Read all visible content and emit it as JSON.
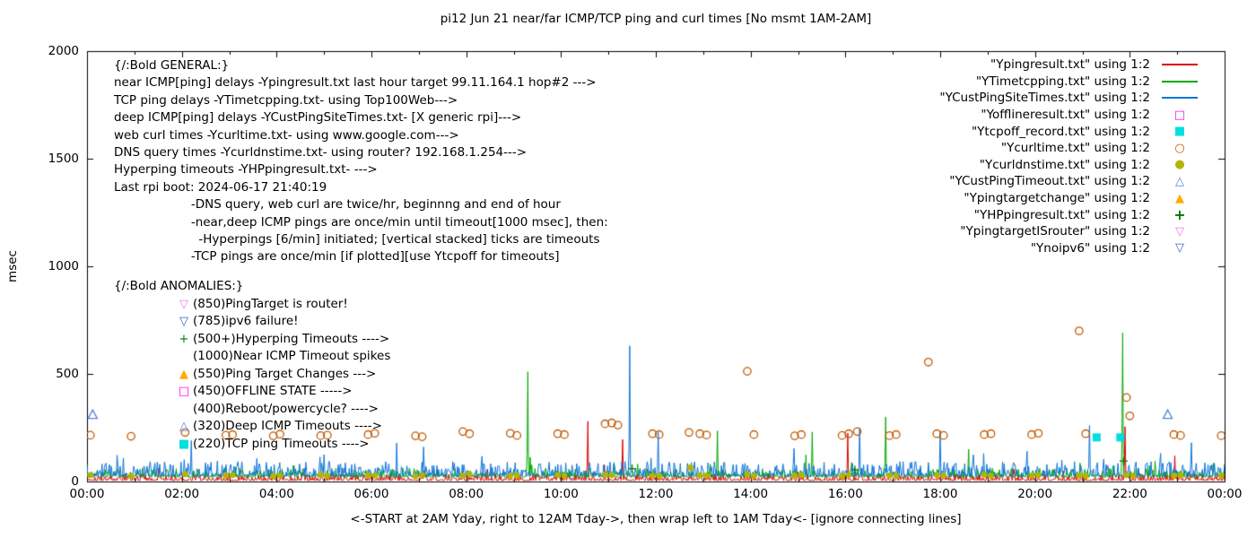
{
  "title": "pi12 Jun 21  near/far ICMP/TCP ping and curl times [No msmt 1AM-2AM]",
  "y_axis": {
    "label": "msec",
    "ticks": [
      0,
      500,
      1000,
      1500,
      2000
    ],
    "tick_labels": [
      "0",
      "500",
      "1000",
      "1500",
      "2000"
    ]
  },
  "x_axis": {
    "label": "<-START at 2AM Yday, right to 12AM Tday->, then wrap left to 1AM Tday<- [ignore connecting lines]",
    "ticks": [
      0,
      2,
      4,
      6,
      8,
      10,
      12,
      14,
      16,
      18,
      20,
      22,
      24
    ],
    "tick_labels": [
      "00:00",
      "02:00",
      "04:00",
      "06:00",
      "08:00",
      "10:00",
      "12:00",
      "14:00",
      "16:00",
      "18:00",
      "20:00",
      "22:00",
      "00:00"
    ]
  },
  "general_notes": {
    "lines": [
      "{/:Bold GENERAL:}",
      "near ICMP[ping] delays -Ypingresult.txt last hour target 99.11.164.1 hop#2 --->",
      "TCP ping delays -YTimetcpping.txt- using Top100Web--->",
      "deep ICMP[ping] delays -YCustPingSiteTimes.txt- [X generic rpi]--->",
      "web curl times -Ycurltime.txt- using www.google.com--->",
      "DNS query times -Ycurldnstime.txt- using router? 192.168.1.254--->",
      "Hyperping timeouts -YHPpingresult.txt- --->",
      "Last rpi boot: 2024-06-17 21:40:19",
      "                    -DNS query, web curl are twice/hr, beginnng and end of hour",
      "                    -near,deep ICMP pings are once/min until timeout[1000 msec], then:",
      "                      -Hyperpings [6/min] initiated; [vertical stacked] ticks are timeouts",
      "                    -TCP pings are once/min [if plotted][use Ytcpoff for timeouts]"
    ]
  },
  "anomaly_notes": {
    "heading": "{/:Bold ANOMALIES:}",
    "lines": [
      {
        "marker": "tri-down-open",
        "color": "#e678e6",
        "text": "(850)PingTarget is router!"
      },
      {
        "marker": "tri-down-open",
        "color": "#3a5fc8",
        "text": "(785)ipv6 failure!"
      },
      {
        "marker": "plus",
        "color": "#007800",
        "text": "(500+)Hyperping Timeouts ---->"
      },
      {
        "marker": null,
        "color": null,
        "text": "(1000)Near ICMP Timeout spikes"
      },
      {
        "marker": "triangle-filled",
        "color": "#ffaa00",
        "text": "(550)Ping Target Changes --->"
      },
      {
        "marker": "square-open",
        "color": "#ff00ff",
        "text": "(450)OFFLINE STATE ----->"
      },
      {
        "marker": null,
        "color": null,
        "text": "(400)Reboot/powercycle? ---->"
      },
      {
        "marker": "triangle-open",
        "color": "#4f86d8",
        "text": "(320)Deep ICMP Timeouts ---->"
      },
      {
        "marker": "square-filled",
        "color": "#00dede",
        "text": "(220)TCP ping Timeouts ---->"
      }
    ]
  },
  "legend": {
    "entries": [
      {
        "label": "\"Ypingresult.txt\" using 1:2",
        "sample": "line",
        "marker": null,
        "color": "#dc0000"
      },
      {
        "label": "\"YTimetcpping.txt\" using 1:2",
        "sample": "line",
        "marker": null,
        "color": "#00a800"
      },
      {
        "label": "\"YCustPingSiteTimes.txt\" using 1:2",
        "sample": "line",
        "marker": null,
        "color": "#0f74d8"
      },
      {
        "label": "\"Yofflineresult.txt\" using 1:2",
        "sample": "marker",
        "marker": "square-open",
        "color": "#ff00ff"
      },
      {
        "label": "\"Ytcpoff_record.txt\" using 1:2",
        "sample": "marker",
        "marker": "square-filled",
        "color": "#00dede"
      },
      {
        "label": "\"Ycurltime.txt\" using 1:2",
        "sample": "marker",
        "marker": "circle-open",
        "color": "#c05a00"
      },
      {
        "label": "\"Ycurldnstime.txt\" using 1:2",
        "sample": "marker",
        "marker": "circle-filled",
        "color": "#b4b400"
      },
      {
        "label": "\"YCustPingTimeout.txt\" using 1:2",
        "sample": "marker",
        "marker": "triangle-open",
        "color": "#4f86d8"
      },
      {
        "label": "\"Ypingtargetchange\" using 1:2",
        "sample": "marker",
        "marker": "triangle-filled",
        "color": "#ffaa00"
      },
      {
        "label": "\"YHPpingresult.txt\" using 1:2",
        "sample": "marker",
        "marker": "plus",
        "color": "#007800"
      },
      {
        "label": "\"YpingtargetISrouter\" using 1:2",
        "sample": "marker",
        "marker": "tri-down-open",
        "color": "#e678e6"
      },
      {
        "label": "\"Ynoipv6\" using 1:2",
        "sample": "marker",
        "marker": "tri-down-open",
        "color": "#3a5fc8"
      }
    ]
  },
  "chart_data": {
    "type": "line",
    "x_unit": "hours",
    "x_range": [
      0,
      24
    ],
    "y_range": [
      0,
      2000
    ],
    "samples_per_hour": 60,
    "no_measurement_window": "1AM-2AM",
    "series": [
      {
        "name": "Ypingresult.txt",
        "style": "line",
        "color": "#dc0000",
        "baseline": {
          "base": 5,
          "jitter": 32,
          "seed": 101
        },
        "spikes": [
          [
            10.56,
            280
          ],
          [
            11.3,
            195
          ],
          [
            16.05,
            225
          ],
          [
            21.9,
            255
          ],
          [
            22.95,
            120
          ]
        ]
      },
      {
        "name": "YTimetcpping.txt",
        "style": "line",
        "color": "#00a800",
        "baseline": {
          "base": 20,
          "jitter": 42,
          "seed": 202
        },
        "spikes": [
          [
            9.3,
            510
          ],
          [
            13.3,
            235
          ],
          [
            15.3,
            230
          ],
          [
            16.85,
            300
          ],
          [
            18.6,
            150
          ],
          [
            21.85,
            690
          ]
        ]
      },
      {
        "name": "YCustPingSiteTimes.txt",
        "style": "line",
        "color": "#0f74d8",
        "baseline": {
          "base": 25,
          "jitter": 68,
          "seed": 303
        },
        "spikes": [
          [
            2.2,
            190
          ],
          [
            7.1,
            160
          ],
          [
            11.45,
            630
          ],
          [
            12.05,
            230
          ],
          [
            16.3,
            250
          ],
          [
            18.0,
            235
          ],
          [
            21.15,
            260
          ],
          [
            23.3,
            180
          ]
        ]
      },
      {
        "name": "Yofflineresult.txt",
        "style": "marker",
        "marker": "square-open",
        "color": "#ff00ff",
        "points": []
      },
      {
        "name": "Ytcpoff_record.txt",
        "style": "marker",
        "marker": "square-filled",
        "color": "#00dede",
        "points": [
          [
            21.3,
            205
          ],
          [
            21.8,
            205
          ]
        ]
      },
      {
        "name": "Ycurltime.txt",
        "style": "marker",
        "marker": "circle-open",
        "color": "#c05a00",
        "points": [
          [
            0.07,
            215
          ],
          [
            0.93,
            210
          ],
          [
            2.07,
            228
          ],
          [
            2.93,
            215
          ],
          [
            3.07,
            218
          ],
          [
            3.93,
            212
          ],
          [
            4.07,
            220
          ],
          [
            4.93,
            213
          ],
          [
            5.07,
            215
          ],
          [
            5.93,
            218
          ],
          [
            6.07,
            224
          ],
          [
            6.93,
            212
          ],
          [
            7.07,
            208
          ],
          [
            7.93,
            232
          ],
          [
            8.07,
            222
          ],
          [
            8.93,
            224
          ],
          [
            9.07,
            214
          ],
          [
            9.93,
            222
          ],
          [
            10.07,
            218
          ],
          [
            10.93,
            268
          ],
          [
            11.07,
            272
          ],
          [
            11.2,
            262
          ],
          [
            11.93,
            222
          ],
          [
            12.07,
            218
          ],
          [
            12.7,
            228
          ],
          [
            12.93,
            222
          ],
          [
            13.07,
            216
          ],
          [
            13.93,
            512
          ],
          [
            14.07,
            218
          ],
          [
            14.93,
            212
          ],
          [
            15.07,
            218
          ],
          [
            15.93,
            214
          ],
          [
            16.07,
            222
          ],
          [
            16.25,
            232
          ],
          [
            16.93,
            213
          ],
          [
            17.07,
            218
          ],
          [
            17.75,
            555
          ],
          [
            17.93,
            222
          ],
          [
            18.07,
            214
          ],
          [
            18.93,
            218
          ],
          [
            19.07,
            222
          ],
          [
            19.93,
            218
          ],
          [
            20.07,
            224
          ],
          [
            20.93,
            700
          ],
          [
            21.07,
            222
          ],
          [
            21.93,
            390
          ],
          [
            22.0,
            305
          ],
          [
            22.93,
            218
          ],
          [
            23.07,
            214
          ],
          [
            23.93,
            213
          ]
        ]
      },
      {
        "name": "Ycurldnstime.txt",
        "style": "marker",
        "marker": "circle-filled",
        "color": "#b4b400",
        "points": [
          [
            0.07,
            30
          ],
          [
            0.93,
            26
          ],
          [
            2.07,
            34
          ],
          [
            2.93,
            28
          ],
          [
            3.07,
            30
          ],
          [
            3.93,
            25
          ],
          [
            4.07,
            28
          ],
          [
            4.93,
            32
          ],
          [
            5.07,
            26
          ],
          [
            5.93,
            30
          ],
          [
            6.07,
            28
          ],
          [
            6.93,
            25
          ],
          [
            7.07,
            30
          ],
          [
            7.93,
            28
          ],
          [
            8.07,
            34
          ],
          [
            8.93,
            26
          ],
          [
            9.07,
            28
          ],
          [
            9.93,
            30
          ],
          [
            10.07,
            26
          ],
          [
            10.93,
            32
          ],
          [
            11.07,
            30
          ],
          [
            11.93,
            28
          ],
          [
            12.07,
            26
          ],
          [
            12.73,
            65
          ],
          [
            12.93,
            30
          ],
          [
            13.07,
            28
          ],
          [
            13.93,
            32
          ],
          [
            14.07,
            26
          ],
          [
            14.93,
            28
          ],
          [
            15.07,
            30
          ],
          [
            15.93,
            26
          ],
          [
            16.07,
            30
          ],
          [
            16.93,
            28
          ],
          [
            17.07,
            26
          ],
          [
            17.93,
            30
          ],
          [
            18.07,
            28
          ],
          [
            18.93,
            32
          ],
          [
            19.07,
            26
          ],
          [
            19.93,
            28
          ],
          [
            20.07,
            30
          ],
          [
            20.93,
            28
          ],
          [
            21.07,
            26
          ],
          [
            21.93,
            30
          ],
          [
            22.07,
            28
          ],
          [
            22.93,
            26
          ],
          [
            23.07,
            30
          ],
          [
            23.93,
            28
          ]
        ]
      },
      {
        "name": "YCustPingTimeout.txt",
        "style": "marker",
        "marker": "triangle-open",
        "color": "#4f86d8",
        "points": [
          [
            0.12,
            310
          ],
          [
            22.8,
            310
          ]
        ]
      },
      {
        "name": "Ypingtargetchange",
        "style": "marker",
        "marker": "triangle-filled",
        "color": "#ffaa00",
        "points": []
      },
      {
        "name": "YHPpingresult.txt",
        "style": "marker",
        "marker": "plus",
        "color": "#007800",
        "points": [
          [
            11.5,
            60
          ],
          [
            16.2,
            55
          ],
          [
            21.87,
            95
          ]
        ]
      },
      {
        "name": "YpingtargetISrouter",
        "style": "marker",
        "marker": "tri-down-open",
        "color": "#e678e6",
        "points": []
      },
      {
        "name": "Ynoipv6",
        "style": "marker",
        "marker": "tri-down-open",
        "color": "#3a5fc8",
        "points": []
      }
    ]
  }
}
